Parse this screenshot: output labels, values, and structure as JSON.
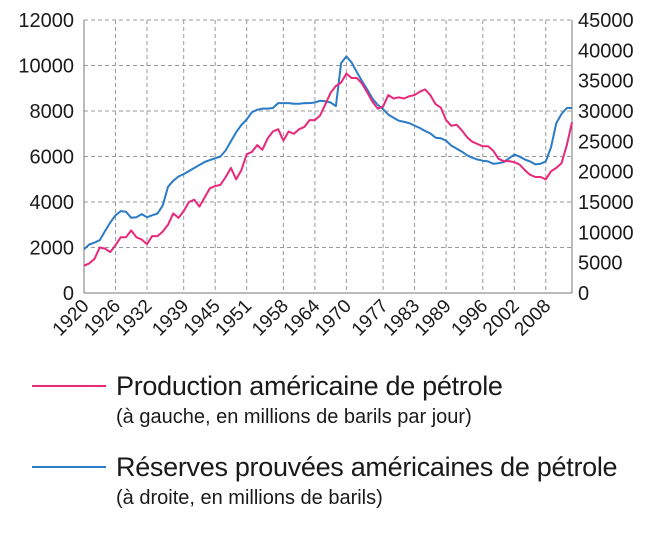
{
  "chart_data": {
    "type": "line",
    "title": "",
    "xlabel": "",
    "x_ticks": [
      "1920",
      "1926",
      "1932",
      "1939",
      "1945",
      "1951",
      "1958",
      "1964",
      "1970",
      "1977",
      "1983",
      "1989",
      "1996",
      "2002",
      "2008"
    ],
    "xlim": [
      1920,
      2013
    ],
    "ylim_left": [
      0,
      12000
    ],
    "yticks_left": [
      "0",
      "2000",
      "4000",
      "6000",
      "8000",
      "10000",
      "12000"
    ],
    "ylim_right": [
      0,
      45000
    ],
    "yticks_right": [
      "0",
      "5000",
      "10000",
      "15000",
      "20000",
      "25000",
      "30000",
      "35000",
      "40000",
      "45000"
    ],
    "grid": true,
    "series": [
      {
        "name": "Production américaine de pétrole",
        "note": "(à gauche, en millions de barils par jour)",
        "axis": "left",
        "color": "#e8287a",
        "x": [
          1920,
          1921,
          1922,
          1923,
          1924,
          1925,
          1926,
          1927,
          1928,
          1929,
          1930,
          1931,
          1932,
          1933,
          1934,
          1935,
          1936,
          1937,
          1938,
          1939,
          1940,
          1941,
          1942,
          1943,
          1944,
          1945,
          1946,
          1947,
          1948,
          1949,
          1950,
          1951,
          1952,
          1953,
          1954,
          1955,
          1956,
          1957,
          1958,
          1959,
          1960,
          1961,
          1962,
          1963,
          1964,
          1965,
          1966,
          1967,
          1968,
          1969,
          1970,
          1971,
          1972,
          1973,
          1974,
          1975,
          1976,
          1977,
          1978,
          1979,
          1980,
          1981,
          1982,
          1983,
          1984,
          1985,
          1986,
          1987,
          1988,
          1989,
          1990,
          1991,
          1992,
          1993,
          1994,
          1995,
          1996,
          1997,
          1998,
          1999,
          2000,
          2001,
          2002,
          2003,
          2004,
          2005,
          2006,
          2007,
          2008,
          2009,
          2010,
          2011,
          2012,
          2013
        ],
        "values": [
          1200,
          1300,
          1500,
          2000,
          1950,
          1800,
          2100,
          2450,
          2450,
          2750,
          2450,
          2350,
          2150,
          2500,
          2500,
          2700,
          3000,
          3500,
          3300,
          3600,
          4000,
          4100,
          3800,
          4200,
          4600,
          4700,
          4750,
          5100,
          5500,
          5000,
          5400,
          6100,
          6200,
          6500,
          6300,
          6800,
          7100,
          7200,
          6700,
          7100,
          7000,
          7200,
          7300,
          7600,
          7600,
          7800,
          8300,
          8800,
          9100,
          9250,
          9650,
          9450,
          9450,
          9200,
          8800,
          8400,
          8100,
          8200,
          8700,
          8550,
          8600,
          8550,
          8650,
          8700,
          8850,
          8950,
          8700,
          8300,
          8150,
          7600,
          7350,
          7400,
          7150,
          6850,
          6650,
          6550,
          6450,
          6450,
          6250,
          5900,
          5800,
          5800,
          5750,
          5650,
          5400,
          5200,
          5100,
          5100,
          5000,
          5350,
          5500,
          5700,
          6500,
          7500
        ]
      },
      {
        "name": "Réserves prouvées américaines de pétrole",
        "note": "(à droite, en millions de barils)",
        "axis": "right",
        "color": "#2b7bc6",
        "x": [
          1920,
          1921,
          1922,
          1923,
          1924,
          1925,
          1926,
          1927,
          1928,
          1929,
          1930,
          1931,
          1932,
          1933,
          1934,
          1935,
          1936,
          1937,
          1938,
          1939,
          1940,
          1941,
          1942,
          1943,
          1944,
          1945,
          1946,
          1947,
          1948,
          1949,
          1950,
          1951,
          1952,
          1953,
          1954,
          1955,
          1956,
          1957,
          1958,
          1959,
          1960,
          1961,
          1962,
          1963,
          1964,
          1965,
          1966,
          1967,
          1968,
          1969,
          1970,
          1971,
          1972,
          1973,
          1974,
          1975,
          1976,
          1977,
          1978,
          1979,
          1980,
          1981,
          1982,
          1983,
          1984,
          1985,
          1986,
          1987,
          1988,
          1989,
          1990,
          1991,
          1992,
          1993,
          1994,
          1995,
          1996,
          1997,
          1998,
          1999,
          2000,
          2001,
          2002,
          2003,
          2004,
          2005,
          2006,
          2007,
          2008,
          2009,
          2010,
          2011,
          2012,
          2013
        ],
        "values": [
          7200,
          8000,
          8300,
          8700,
          10200,
          11600,
          12800,
          13500,
          13400,
          12400,
          12500,
          13000,
          12500,
          12800,
          13100,
          14400,
          17500,
          18500,
          19200,
          19600,
          20100,
          20600,
          21100,
          21600,
          21900,
          22200,
          22500,
          23500,
          25000,
          26500,
          27700,
          28600,
          29800,
          30200,
          30400,
          30400,
          30500,
          31300,
          31300,
          31300,
          31200,
          31200,
          31300,
          31300,
          31400,
          31700,
          31600,
          31400,
          30800,
          37900,
          39000,
          38000,
          36400,
          34900,
          33500,
          32000,
          31000,
          30300,
          29400,
          28900,
          28400,
          28200,
          28000,
          27600,
          27200,
          26700,
          26300,
          25600,
          25500,
          25100,
          24300,
          23800,
          23300,
          22700,
          22300,
          22000,
          21800,
          21700,
          21300,
          21400,
          21600,
          22200,
          22800,
          22500,
          22000,
          21700,
          21200,
          21300,
          21700,
          24000,
          28000,
          29500,
          30500,
          30500
        ]
      }
    ]
  }
}
